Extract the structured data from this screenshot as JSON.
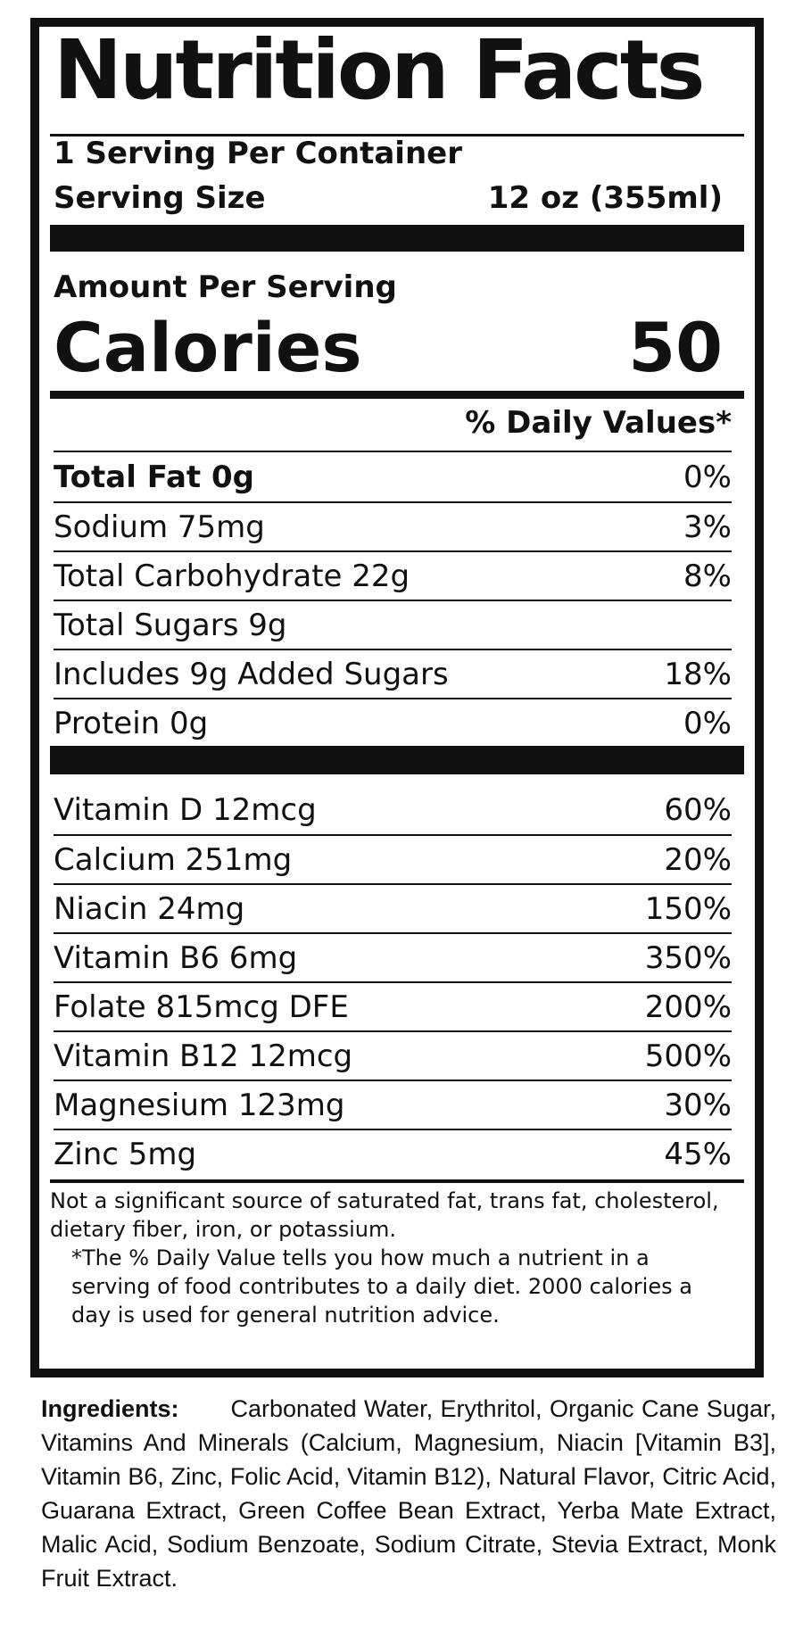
{
  "label": {
    "title": "Nutrition Facts",
    "servings_per_container": "1 Serving Per Container",
    "serving_size_label": "Serving Size",
    "serving_size_value": "12 oz (355ml)",
    "amount_per_serving": "Amount Per Serving",
    "calories_label": "Calories",
    "calories_value": "50",
    "daily_values_header": "% Daily Values*"
  },
  "nutrients": [
    {
      "name": "Total Fat 0g",
      "dv": "0%"
    },
    {
      "name": "Sodium 75mg",
      "dv": "3%"
    },
    {
      "name": "Total Carbohydrate 22g",
      "dv": "8%"
    },
    {
      "name": "Total Sugars 9g",
      "dv": ""
    },
    {
      "name": "Includes 9g Added Sugars",
      "dv": "18%"
    },
    {
      "name": "Protein 0g",
      "dv": "0%"
    }
  ],
  "vitamins": [
    {
      "name": "Vitamin D 12mcg",
      "dv": "60%"
    },
    {
      "name": "Calcium 251mg",
      "dv": "20%"
    },
    {
      "name": "Niacin 24mg",
      "dv": "150%"
    },
    {
      "name": "Vitamin B6 6mg",
      "dv": "350%"
    },
    {
      "name": "Folate 815mcg DFE",
      "dv": "200%"
    },
    {
      "name": "Vitamin B12 12mcg",
      "dv": "500%"
    },
    {
      "name": "Magnesium 123mg",
      "dv": "30%"
    },
    {
      "name": "Zinc 5mg",
      "dv": "45%"
    }
  ],
  "footnote": {
    "not_significant": "Not a significant source of saturated fat, trans fat, cholesterol, dietary fiber, iron, or potassium.",
    "daily_value_note": "*The % Daily Value tells you how much a nutrient in a serving of food contributes to a daily diet. 2000 calories a day is used for general nutrition advice."
  },
  "ingredients": {
    "label": "Ingredients:",
    "text": "Carbonated Water, Erythritol, Organic Cane Sugar, Vitamins And Minerals (Calcium, Magnesium, Niacin [Vitamin B3], Vitamin B6, Zinc, Folic Acid, Vitamin B12), Natural Flavor, Citric Acid, Guarana Extract, Green Coffee Bean Extract, Yerba Mate Extract, Malic Acid, Sodium Benzoate, Sodium Citrate, Stevia Extract, Monk Fruit Extract."
  }
}
